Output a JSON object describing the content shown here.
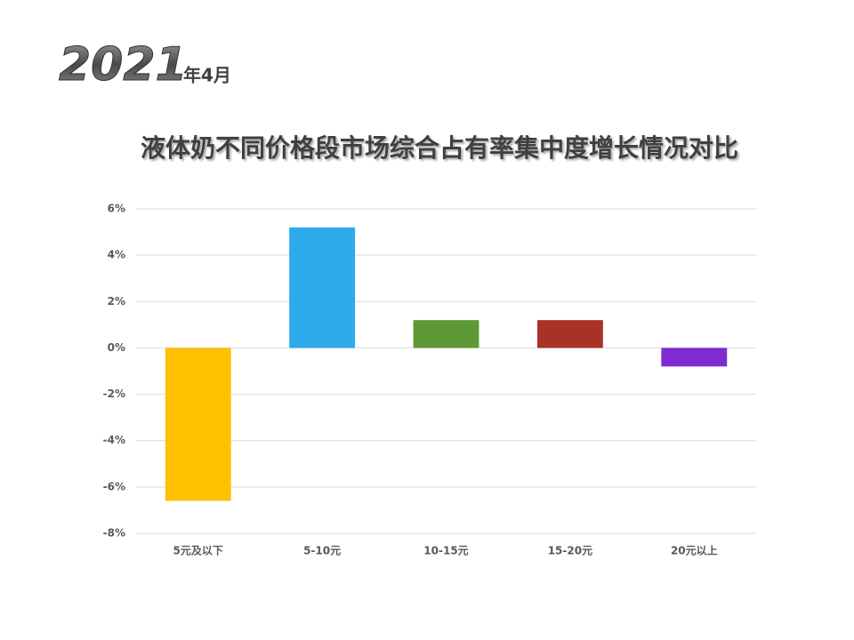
{
  "chart_data": {
    "type": "bar",
    "year": "2021",
    "month": "年4月",
    "title": "液体奶不同价格段市场综合占有率集中度增长情况对比",
    "categories": [
      "5元及以下",
      "5-10元",
      "10-15元",
      "15-20元",
      "20元以上"
    ],
    "values": [
      -6.6,
      5.2,
      1.2,
      1.2,
      -0.8
    ],
    "colors": [
      "#ffc000",
      "#2eaaeb",
      "#5d9a35",
      "#a93226",
      "#7f2bd1"
    ],
    "ylim": [
      -8,
      6
    ],
    "yticks": [
      {
        "value": -8,
        "label": "-8%"
      },
      {
        "value": -6,
        "label": "-6%"
      },
      {
        "value": -4,
        "label": "-4%"
      },
      {
        "value": -2,
        "label": "-2%"
      },
      {
        "value": 0,
        "label": "0%"
      },
      {
        "value": 2,
        "label": "2%"
      },
      {
        "value": 4,
        "label": "4%"
      },
      {
        "value": 6,
        "label": "6%"
      }
    ],
    "grid": true
  }
}
